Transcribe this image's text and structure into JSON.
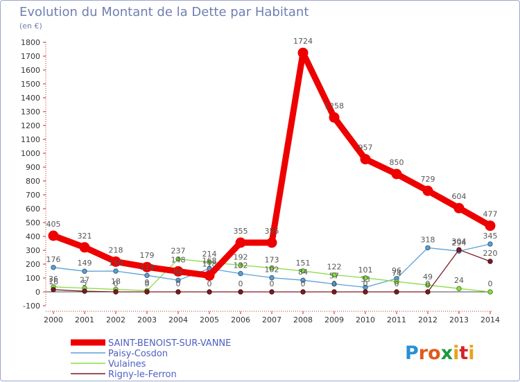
{
  "title": "Evolution du Montant de la Dette par Habitant",
  "subtitle": "(en €)",
  "brand": {
    "text": "Proxiti",
    "letters": [
      "P",
      "r",
      "o",
      "x",
      "i",
      "t",
      "i"
    ],
    "colors": [
      "#2a8fd6",
      "#e05a1c",
      "#e05a1c",
      "#1a9a3c",
      "#e8a21a",
      "#d8202a",
      "#e8a21a"
    ]
  },
  "chart_data": {
    "type": "line",
    "title": "Evolution du Montant de la Dette par Habitant",
    "ylabel": "(en €)",
    "xlabel": "",
    "x": [
      "2000",
      "2001",
      "2002",
      "2003",
      "2004",
      "2005",
      "2006",
      "2007",
      "2008",
      "2009",
      "2010",
      "2011",
      "2012",
      "2013",
      "2014"
    ],
    "ylim": [
      -100,
      1800
    ],
    "yticks": [
      -100,
      0,
      100,
      200,
      300,
      400,
      500,
      600,
      700,
      800,
      900,
      1000,
      1100,
      1200,
      1300,
      1400,
      1500,
      1600,
      1700,
      1800
    ],
    "grid": false,
    "legend_position": "bottom-left",
    "series": [
      {
        "name": "SAINT-BENOIST-SUR-VANNE",
        "color": "#ee0000",
        "emphasis": true,
        "values": [
          405,
          321,
          218,
          179,
          148,
          118,
          355,
          355,
          1724,
          1258,
          957,
          850,
          729,
          604,
          477
        ]
      },
      {
        "name": "Paisy-Cosdon",
        "color": "#5a9fd4",
        "emphasis": false,
        "values": [
          176,
          149,
          150,
          119,
          84,
          168,
          132,
          102,
          84,
          57,
          33,
          96,
          318,
          294,
          345
        ]
      },
      {
        "name": "Vulaines",
        "color": "#88dd44",
        "emphasis": false,
        "values": [
          36,
          27,
          18,
          9,
          237,
          214,
          192,
          173,
          151,
          122,
          101,
          74,
          49,
          24,
          0
        ]
      },
      {
        "name": "Rigny-le-Ferron",
        "color": "#7a1a22",
        "emphasis": false,
        "values": [
          16,
          5,
          0,
          0,
          0,
          0,
          0,
          0,
          0,
          0,
          0,
          0,
          0,
          304,
          220
        ]
      }
    ],
    "data_labels": [
      {
        "series": 0,
        "values": [
          "405",
          "321",
          "218",
          "179",
          "148",
          "118",
          "355",
          "355",
          "1724",
          "1258",
          "957",
          "850",
          "729",
          "604",
          "477"
        ]
      },
      {
        "series": 1,
        "values": [
          "176",
          "149",
          "150",
          "119",
          "84",
          "168",
          "132",
          "102",
          "84",
          "57",
          "33",
          "96",
          "318",
          "294",
          "345"
        ]
      },
      {
        "series": 2,
        "values": [
          "36",
          "27",
          "18",
          "9",
          "237",
          "214",
          "192",
          "173",
          "151",
          "122",
          "101",
          "74",
          "49",
          "24",
          "0"
        ]
      },
      {
        "series": 3,
        "values": [
          "16",
          "5",
          "0",
          "0",
          "0",
          "0",
          "0",
          "0",
          "0",
          "0",
          "0",
          "0",
          "0",
          "304",
          "220"
        ]
      }
    ]
  }
}
